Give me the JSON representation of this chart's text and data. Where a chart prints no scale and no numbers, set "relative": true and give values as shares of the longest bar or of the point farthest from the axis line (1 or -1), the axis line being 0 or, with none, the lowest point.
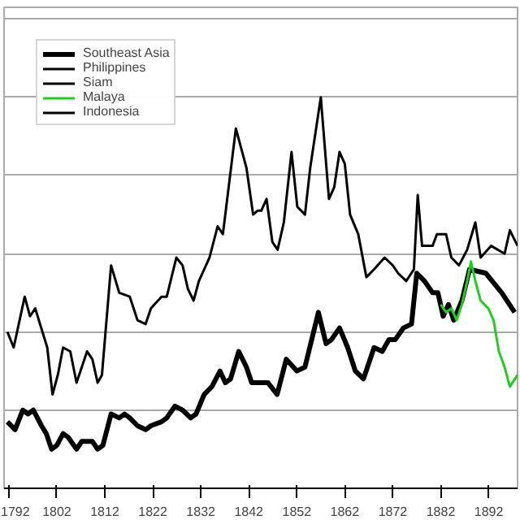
{
  "chart_data": {
    "type": "line",
    "relative": true,
    "grid": "y",
    "legend": "top left",
    "xlim": [
      1791,
      1898
    ],
    "xticks": [
      1792,
      1802,
      1812,
      1822,
      1832,
      1842,
      1852,
      1862,
      1872,
      1882,
      1892
    ],
    "series": [
      {
        "name": "Southeast Asia",
        "color": "#000000",
        "x": [
          1791.7,
          1793.3,
          1794.9,
          1796.0,
          1797.1,
          1798.8,
          1799.8,
          1800.9,
          1802.0,
          1803.3,
          1804.4,
          1806.1,
          1807.2,
          1809.4,
          1810.5,
          1811.6,
          1813.3,
          1815.0,
          1816.1,
          1817.2,
          1818.8,
          1820.5,
          1821.6,
          1823.8,
          1824.9,
          1826.6,
          1828.2,
          1829.9,
          1831.0,
          1832.7,
          1834.3,
          1836.0,
          1837.1,
          1838.2,
          1839.9,
          1841.5,
          1842.6,
          1846.0,
          1847.9,
          1849.8,
          1852.0,
          1853.7,
          1856.5,
          1858.1,
          1859.2,
          1860.9,
          1862.6,
          1864.2,
          1865.9,
          1868.1,
          1869.8,
          1871.2,
          1872.5,
          1874.2,
          1875.9,
          1877.0,
          1878.6,
          1880.3,
          1881.4,
          1882.5,
          1883.6,
          1884.7,
          1886.4,
          1888.0,
          1891.4,
          1894.7,
          1897.4
        ],
        "values": [
          0.17,
          0.15,
          0.2,
          0.19,
          0.2,
          0.16,
          0.14,
          0.1,
          0.11,
          0.14,
          0.13,
          0.1,
          0.12,
          0.12,
          0.1,
          0.11,
          0.19,
          0.18,
          0.19,
          0.18,
          0.16,
          0.15,
          0.16,
          0.17,
          0.18,
          0.21,
          0.2,
          0.18,
          0.19,
          0.24,
          0.26,
          0.3,
          0.27,
          0.28,
          0.35,
          0.31,
          0.27,
          0.27,
          0.24,
          0.33,
          0.3,
          0.31,
          0.45,
          0.37,
          0.38,
          0.41,
          0.36,
          0.3,
          0.28,
          0.36,
          0.35,
          0.38,
          0.38,
          0.41,
          0.42,
          0.55,
          0.53,
          0.5,
          0.5,
          0.44,
          0.47,
          0.43,
          0.48,
          0.56,
          0.55,
          0.5,
          0.45
        ]
      },
      {
        "name": "Philippines",
        "color": "#000000",
        "x": [
          1791.7,
          1793.0,
          1795.3,
          1796.4,
          1797.5,
          1800.0,
          1801.1,
          1802.2,
          1803.3,
          1804.8,
          1806.1,
          1808.3,
          1809.4,
          1810.5,
          1811.4,
          1813.3,
          1815.0,
          1817.2,
          1818.8,
          1820.5,
          1821.6,
          1823.8,
          1824.9,
          1826.9,
          1828.2,
          1829.3,
          1830.5,
          1831.6,
          1833.8,
          1835.5,
          1836.6,
          1839.3,
          1841.5,
          1842.9,
          1843.8,
          1844.6,
          1845.7,
          1846.9,
          1848.0,
          1849.3,
          1850.9,
          1852.1,
          1853.7,
          1854.8,
          1857.0,
          1858.7,
          1859.8,
          1860.9,
          1862.0,
          1863.1,
          1864.8,
          1866.5,
          1868.1,
          1870.3,
          1872.0,
          1873.1,
          1874.8,
          1876.4,
          1877.2,
          1878.1,
          1880.3,
          1881.2,
          1883.1,
          1884.2,
          1885.8,
          1887.5,
          1889.2,
          1890.3,
          1892.5,
          1895.3,
          1896.4,
          1898.0
        ],
        "values": [
          0.4,
          0.36,
          0.49,
          0.44,
          0.46,
          0.36,
          0.24,
          0.29,
          0.36,
          0.35,
          0.27,
          0.35,
          0.33,
          0.27,
          0.29,
          0.57,
          0.5,
          0.49,
          0.43,
          0.42,
          0.46,
          0.49,
          0.49,
          0.59,
          0.57,
          0.51,
          0.48,
          0.53,
          0.59,
          0.67,
          0.65,
          0.92,
          0.82,
          0.7,
          0.71,
          0.71,
          0.74,
          0.63,
          0.61,
          0.68,
          0.86,
          0.72,
          0.7,
          0.82,
          1.0,
          0.74,
          0.77,
          0.86,
          0.83,
          0.7,
          0.65,
          0.54,
          0.56,
          0.59,
          0.57,
          0.55,
          0.53,
          0.56,
          0.75,
          0.62,
          0.62,
          0.65,
          0.65,
          0.59,
          0.57,
          0.61,
          0.68,
          0.59,
          0.62,
          0.6,
          0.66,
          0.62
        ]
      },
      {
        "name": "Siam",
        "color": "#000000"
      },
      {
        "name": "Malaya",
        "color": "#22cc22",
        "x": [
          1882.0,
          1883.1,
          1884.2,
          1885.3,
          1886.4,
          1887.5,
          1888.3,
          1889.2,
          1890.3,
          1891.9,
          1893.0,
          1894.1,
          1895.3,
          1896.4,
          1898.0
        ],
        "values": [
          0.47,
          0.45,
          0.46,
          0.43,
          0.47,
          0.53,
          0.58,
          0.53,
          0.48,
          0.46,
          0.43,
          0.35,
          0.31,
          0.26,
          0.29
        ]
      },
      {
        "name": "Indonesia",
        "color": "#000000"
      }
    ]
  }
}
